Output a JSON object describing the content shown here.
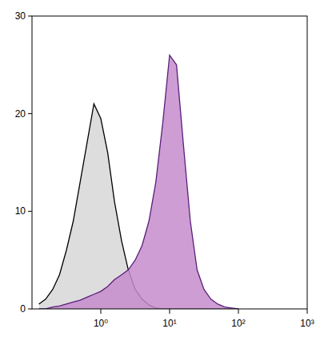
{
  "chart_data": {
    "type": "area",
    "log": "x",
    "x": [
      0.126,
      0.158,
      0.2,
      0.251,
      0.316,
      0.398,
      0.501,
      0.631,
      0.794,
      1,
      1.26,
      1.58,
      2,
      2.51,
      3.16,
      3.98,
      5.01,
      6.31,
      7.94,
      10,
      12.6,
      15.8,
      20,
      25.1,
      31.6,
      39.8,
      50.1,
      63.1,
      79.4,
      100
    ],
    "series": [
      {
        "color": "#dddddd",
        "values": [
          0.5,
          1,
          2,
          3.5,
          6,
          9,
          13,
          17,
          21,
          19.5,
          16,
          11,
          7,
          4,
          2,
          1,
          0.4,
          0.1,
          0,
          0,
          0,
          0,
          0,
          0,
          0,
          0,
          0,
          0,
          0,
          0
        ]
      },
      {
        "color": "#c48ccc",
        "values": [
          0,
          0,
          0.2,
          0.3,
          0.5,
          0.7,
          0.9,
          1.2,
          1.5,
          1.8,
          2.3,
          3,
          3.5,
          4,
          5,
          6.5,
          9,
          13,
          19,
          26,
          25,
          17,
          9,
          4,
          2,
          1,
          0.5,
          0.2,
          0.1,
          0
        ]
      }
    ],
    "xlim": [
      0.1,
      1000
    ],
    "xticks": [
      {
        "value": 1,
        "label": "10⁰"
      },
      {
        "value": 10,
        "label": "10¹"
      },
      {
        "value": 100,
        "label": "10²"
      },
      {
        "value": 1000,
        "label": "10³"
      }
    ],
    "ylim": [
      0,
      30
    ],
    "yticks": [
      0,
      10,
      20,
      30
    ]
  }
}
